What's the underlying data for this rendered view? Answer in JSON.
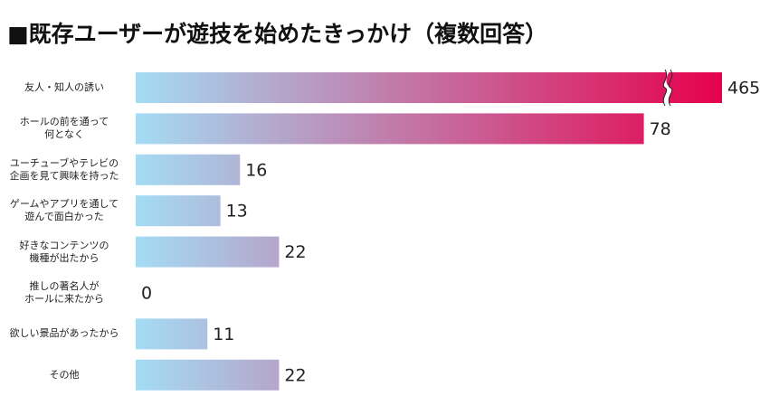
{
  "chart_data": {
    "type": "bar",
    "orientation": "horizontal",
    "title": "■既存ユーザーが遊技を始めたきっかけ（複数回答）",
    "categories": [
      "友人・知人の誘い",
      "ホールの前を通って\n何となく",
      "ユーチューブやテレビの\n企画を見て興味を持った",
      "ゲームやアプリを通して\n遊んで面白かった",
      "好きなコンテンツの\n機種が出たから",
      "推しの著名人が\nホールに来たから",
      "欲しい景品があったから",
      "その他"
    ],
    "values": [
      465,
      78,
      16,
      13,
      22,
      0,
      11,
      22
    ],
    "xlim": [
      0,
      90
    ],
    "axis_break": true,
    "color_start": "#a4dcf4",
    "color_end": "#e6004c"
  }
}
